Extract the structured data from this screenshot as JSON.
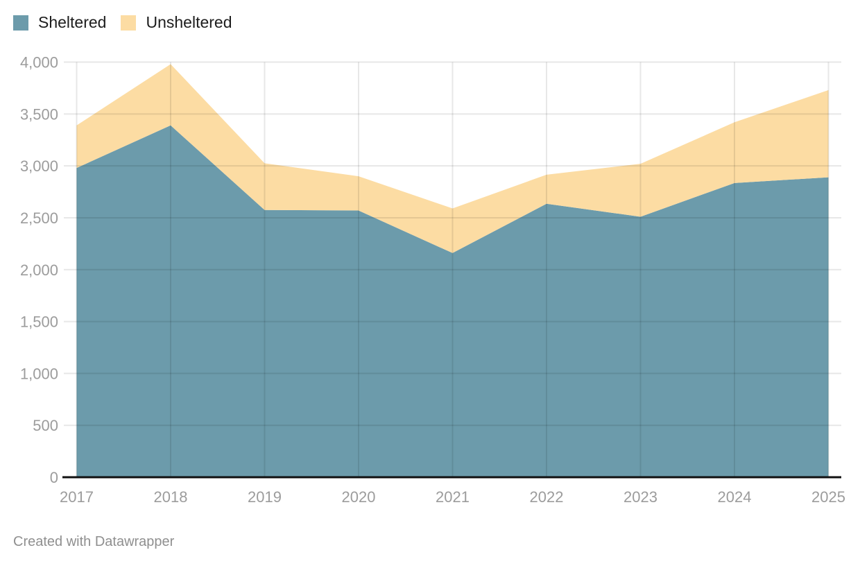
{
  "chart_data": {
    "type": "area",
    "stacked": true,
    "categories": [
      "2017",
      "2018",
      "2019",
      "2020",
      "2021",
      "2022",
      "2023",
      "2024",
      "2025"
    ],
    "series": [
      {
        "name": "Sheltered",
        "color": "#6c9bab",
        "values": [
          2980,
          3390,
          2575,
          2570,
          2160,
          2635,
          2510,
          2835,
          2890
        ]
      },
      {
        "name": "Unsheltered",
        "color": "#fcdca3",
        "values": [
          410,
          590,
          450,
          330,
          430,
          280,
          510,
          585,
          840
        ]
      }
    ],
    "totals": [
      3390,
      3980,
      3025,
      2900,
      2590,
      2915,
      3020,
      3420,
      3730
    ],
    "title": "",
    "xlabel": "",
    "ylabel": "",
    "ylim": [
      0,
      4000
    ],
    "ytick_step": 500,
    "yticks": [
      "0",
      "500",
      "1,000",
      "1,500",
      "2,000",
      "2,500",
      "3,000",
      "3,500",
      "4,000"
    ],
    "grid": true,
    "legend_position": "top-left"
  },
  "colors": {
    "gridline": "rgba(0,0,0,0.095)",
    "axis_baseline": "#111111",
    "tick_label": "#9c9c9c",
    "legend_text": "#1d1d1d",
    "footer_text": "#8f8f8f"
  },
  "footer": {
    "credit": "Created with Datawrapper"
  }
}
